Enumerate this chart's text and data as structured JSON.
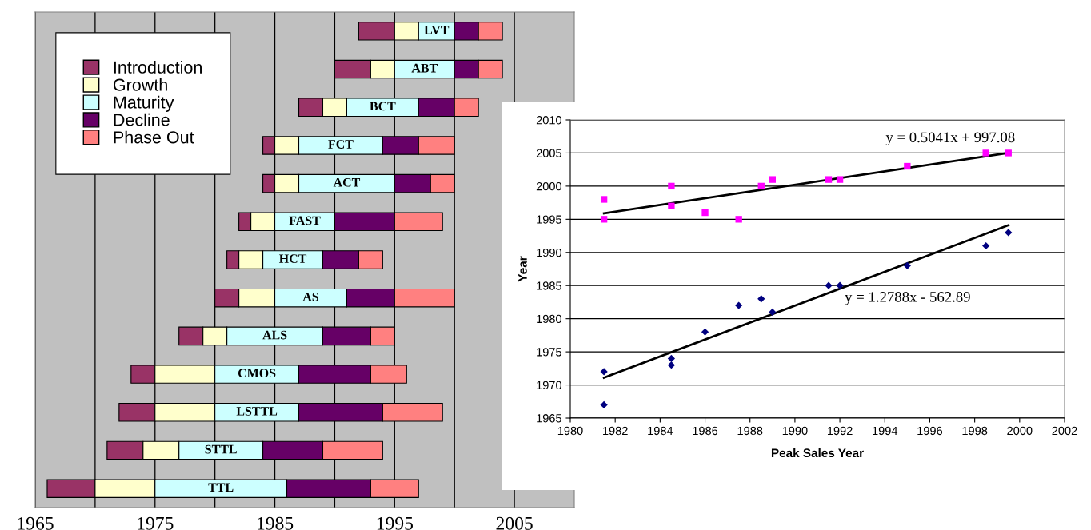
{
  "chart_data": [
    {
      "type": "bar",
      "orientation": "horizontal",
      "categories": [
        "LVT",
        "ABT",
        "BCT",
        "FCT",
        "ACT",
        "FAST",
        "HCT",
        "AS",
        "ALS",
        "CMOS",
        "LSTTL",
        "STTL",
        "TTL"
      ],
      "series": [
        {
          "name": "Introduction",
          "color": "#993366",
          "base": [
            1992,
            1990,
            1987,
            1984,
            1984,
            1982,
            1981,
            1980,
            1977,
            1973,
            1972,
            1971,
            1966
          ],
          "values": [
            3,
            3,
            2,
            1,
            1,
            1,
            1,
            2,
            2,
            2,
            3,
            3,
            4
          ]
        },
        {
          "name": "Growth",
          "color": "#ffffcc",
          "base": [
            1995,
            1993,
            1989,
            1985,
            1985,
            1983,
            1982,
            1982,
            1979,
            1975,
            1975,
            1974,
            1970
          ],
          "values": [
            2,
            2,
            2,
            2,
            2,
            2,
            2,
            3,
            2,
            5,
            5,
            3,
            5
          ]
        },
        {
          "name": "Maturity",
          "color": "#ccffff",
          "base": [
            1997,
            1995,
            1991,
            1987,
            1987,
            1985,
            1984,
            1985,
            1981,
            1980,
            1980,
            1977,
            1975
          ],
          "values": [
            3,
            5,
            6,
            7,
            8,
            5,
            5,
            6,
            8,
            7,
            7,
            7,
            11
          ]
        },
        {
          "name": "Decline",
          "color": "#660066",
          "base": [
            2000,
            2000,
            1997,
            1994,
            1995,
            1990,
            1989,
            1991,
            1989,
            1987,
            1987,
            1984,
            1986
          ],
          "values": [
            2,
            2,
            3,
            3,
            3,
            5,
            3,
            4,
            4,
            6,
            7,
            5,
            7
          ]
        },
        {
          "name": "Phase Out",
          "color": "#ff8080",
          "base": [
            2002,
            2002,
            2000,
            1997,
            1998,
            1995,
            1992,
            1995,
            1993,
            1993,
            1994,
            1989,
            1993
          ],
          "values": [
            2,
            2,
            2,
            3,
            2,
            4,
            2,
            5,
            2,
            3,
            5,
            5,
            4
          ]
        }
      ],
      "xlim": [
        1965,
        2010
      ],
      "xticks": [
        1965,
        {
          "value": 1970,
          "label": null
        },
        1975,
        {
          "value": 1980,
          "label": null
        },
        1985,
        {
          "value": 1990,
          "label": null
        },
        1995,
        {
          "value": 2000,
          "label": null
        },
        2005
      ],
      "grid": "x",
      "legend": "top left",
      "tick_labels": "x"
    },
    {
      "type": "scatter",
      "xlabel": "Peak Sales Year",
      "ylabel": "Year",
      "series": [
        {
          "type": "scatter",
          "marker": "square",
          "color": "#ff00ff",
          "x": [
            1981.5,
            1981.5,
            1984.5,
            1984.5,
            1986,
            1987.5,
            1988.5,
            1989,
            1991.5,
            1992,
            1995,
            1998.5,
            1999.5
          ],
          "values": [
            1998,
            1995,
            2000,
            1997,
            1996,
            1995,
            2000,
            2001,
            2001,
            2001,
            2003,
            2005,
            2005
          ]
        },
        {
          "type": "scatter",
          "marker": "diamond",
          "color": "#000080",
          "x": [
            1981.5,
            1981.5,
            1984.5,
            1984.5,
            1986,
            1987.5,
            1988.5,
            1989,
            1991.5,
            1992,
            1995,
            1998.5,
            1999.5
          ],
          "values": [
            1972,
            1967,
            1974,
            1973,
            1978,
            1982,
            1983,
            1981,
            1985,
            1985,
            1988,
            1991,
            1993
          ]
        },
        {
          "type": "line",
          "color": "#000000",
          "x": [
            1981.5,
            1999.5
          ],
          "values": [
            1995.9,
            2005.0
          ]
        },
        {
          "type": "line",
          "color": "#000000",
          "x": [
            1981.5,
            1999.5
          ],
          "values": [
            1971.1,
            1994.1
          ]
        }
      ],
      "annotations": [
        "y = 0.5041x + 997.08",
        "y = 1.2788x - 562.89"
      ],
      "xlim": [
        1980,
        2002
      ],
      "xticks": [
        1980,
        1982,
        1984,
        1986,
        1988,
        1990,
        1992,
        1994,
        1996,
        1998,
        2000,
        2002
      ],
      "ylim": [
        1965,
        2010
      ],
      "yticks": [
        1965,
        1970,
        1975,
        1980,
        1985,
        1990,
        1995,
        2000,
        2005,
        2010
      ],
      "grid": "y"
    }
  ]
}
